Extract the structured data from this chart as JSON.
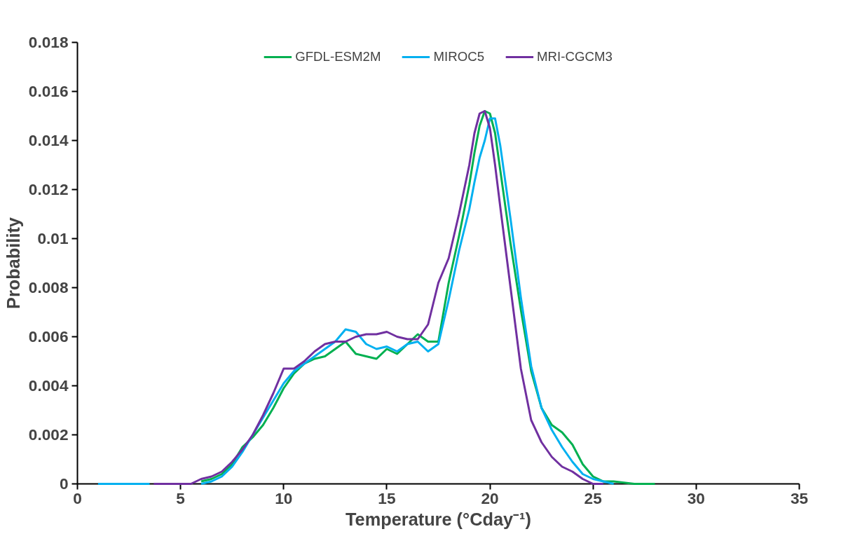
{
  "chart_data": {
    "type": "line",
    "xlabel": "Temperature (°Cday⁻¹)",
    "ylabel": "Probability",
    "series": [
      {
        "name": "GFDL-ESM2M",
        "color": "#00b050",
        "x": [
          6,
          6.5,
          7,
          7.5,
          8,
          8.5,
          9,
          9.5,
          10,
          10.5,
          11,
          11.5,
          12,
          12.5,
          13,
          13.5,
          14,
          14.5,
          15,
          15.5,
          16,
          16.5,
          17,
          17.5,
          18,
          18.5,
          19,
          19.25,
          19.5,
          19.75,
          20,
          20.25,
          20.5,
          21,
          21.5,
          22,
          22.5,
          23,
          23.5,
          24,
          24.5,
          25,
          25.5,
          26,
          27,
          28
        ],
        "values": [
          0.0001,
          0.0002,
          0.0004,
          0.0008,
          0.0015,
          0.0019,
          0.0024,
          0.0031,
          0.0039,
          0.0045,
          0.0049,
          0.0051,
          0.0052,
          0.0055,
          0.0058,
          0.0053,
          0.0052,
          0.0051,
          0.0055,
          0.0053,
          0.0057,
          0.0061,
          0.0058,
          0.0058,
          0.0082,
          0.0101,
          0.0122,
          0.0135,
          0.0146,
          0.0152,
          0.0151,
          0.0143,
          0.0128,
          0.0098,
          0.0071,
          0.0046,
          0.0031,
          0.0024,
          0.0021,
          0.0016,
          0.0008,
          0.0003,
          0.0001,
          0.0001,
          0,
          0
        ]
      },
      {
        "name": "MIROC5",
        "color": "#00b0f0",
        "x": [
          1,
          3.5,
          4.5,
          6,
          6.5,
          7,
          7.5,
          8,
          8.5,
          9,
          9.5,
          10,
          10.5,
          11,
          11.5,
          12,
          12.5,
          13,
          13.5,
          14,
          14.5,
          15,
          15.5,
          16,
          16.5,
          17,
          17.5,
          18,
          18.5,
          19,
          19.25,
          19.5,
          19.75,
          20,
          20.25,
          20.5,
          21,
          21.5,
          22,
          22.5,
          23,
          23.5,
          24,
          24.5,
          25,
          25.5,
          26
        ],
        "values": [
          0,
          0,
          null,
          0,
          0.0001,
          0.0003,
          0.0007,
          0.0013,
          0.002,
          0.0027,
          0.0034,
          0.0041,
          0.0046,
          0.0049,
          0.0052,
          0.0055,
          0.0058,
          0.0063,
          0.0062,
          0.0057,
          0.0055,
          0.0056,
          0.0054,
          0.0057,
          0.0058,
          0.0054,
          0.0057,
          0.0075,
          0.0095,
          0.0112,
          0.0123,
          0.0133,
          0.014,
          0.0149,
          0.0149,
          0.0138,
          0.0108,
          0.0076,
          0.0048,
          0.0031,
          0.0022,
          0.0015,
          0.0009,
          0.0004,
          0.0002,
          0.0001,
          0
        ]
      },
      {
        "name": "MRI-CGCM3",
        "color": "#7030a0",
        "x": [
          3.7,
          5,
          5.5,
          6,
          6.5,
          7,
          7.5,
          8,
          8.5,
          9,
          9.5,
          10,
          10.5,
          11,
          11.5,
          12,
          12.5,
          13,
          13.5,
          14,
          14.5,
          15,
          15.5,
          16,
          16.5,
          17,
          17.5,
          18,
          18.5,
          19,
          19.25,
          19.5,
          19.75,
          20,
          20.25,
          20.5,
          21,
          21.5,
          22,
          22.5,
          23,
          23.5,
          24,
          24.5,
          25,
          25.5
        ],
        "values": [
          0,
          0,
          0,
          0.0002,
          0.0003,
          0.0005,
          0.0009,
          0.0014,
          0.002,
          0.0028,
          0.0037,
          0.0047,
          0.0047,
          0.005,
          0.0054,
          0.0057,
          0.0058,
          0.0058,
          0.006,
          0.0061,
          0.0061,
          0.0062,
          0.006,
          0.0059,
          0.0059,
          0.0065,
          0.0082,
          0.0092,
          0.011,
          0.013,
          0.0143,
          0.0151,
          0.0152,
          0.0145,
          0.013,
          0.0113,
          0.008,
          0.0047,
          0.0026,
          0.0017,
          0.0011,
          0.0007,
          0.0005,
          0.0002,
          0,
          0
        ]
      }
    ],
    "xlim": [
      0,
      35
    ],
    "xticks": [
      0,
      5,
      10,
      15,
      20,
      25,
      30,
      35
    ],
    "ylim": [
      0,
      0.018
    ],
    "yticks": [
      0,
      0.002,
      0.004,
      0.006,
      0.008,
      0.01,
      0.012,
      0.014,
      0.016,
      0.018
    ],
    "grid": false,
    "legend": "top"
  }
}
